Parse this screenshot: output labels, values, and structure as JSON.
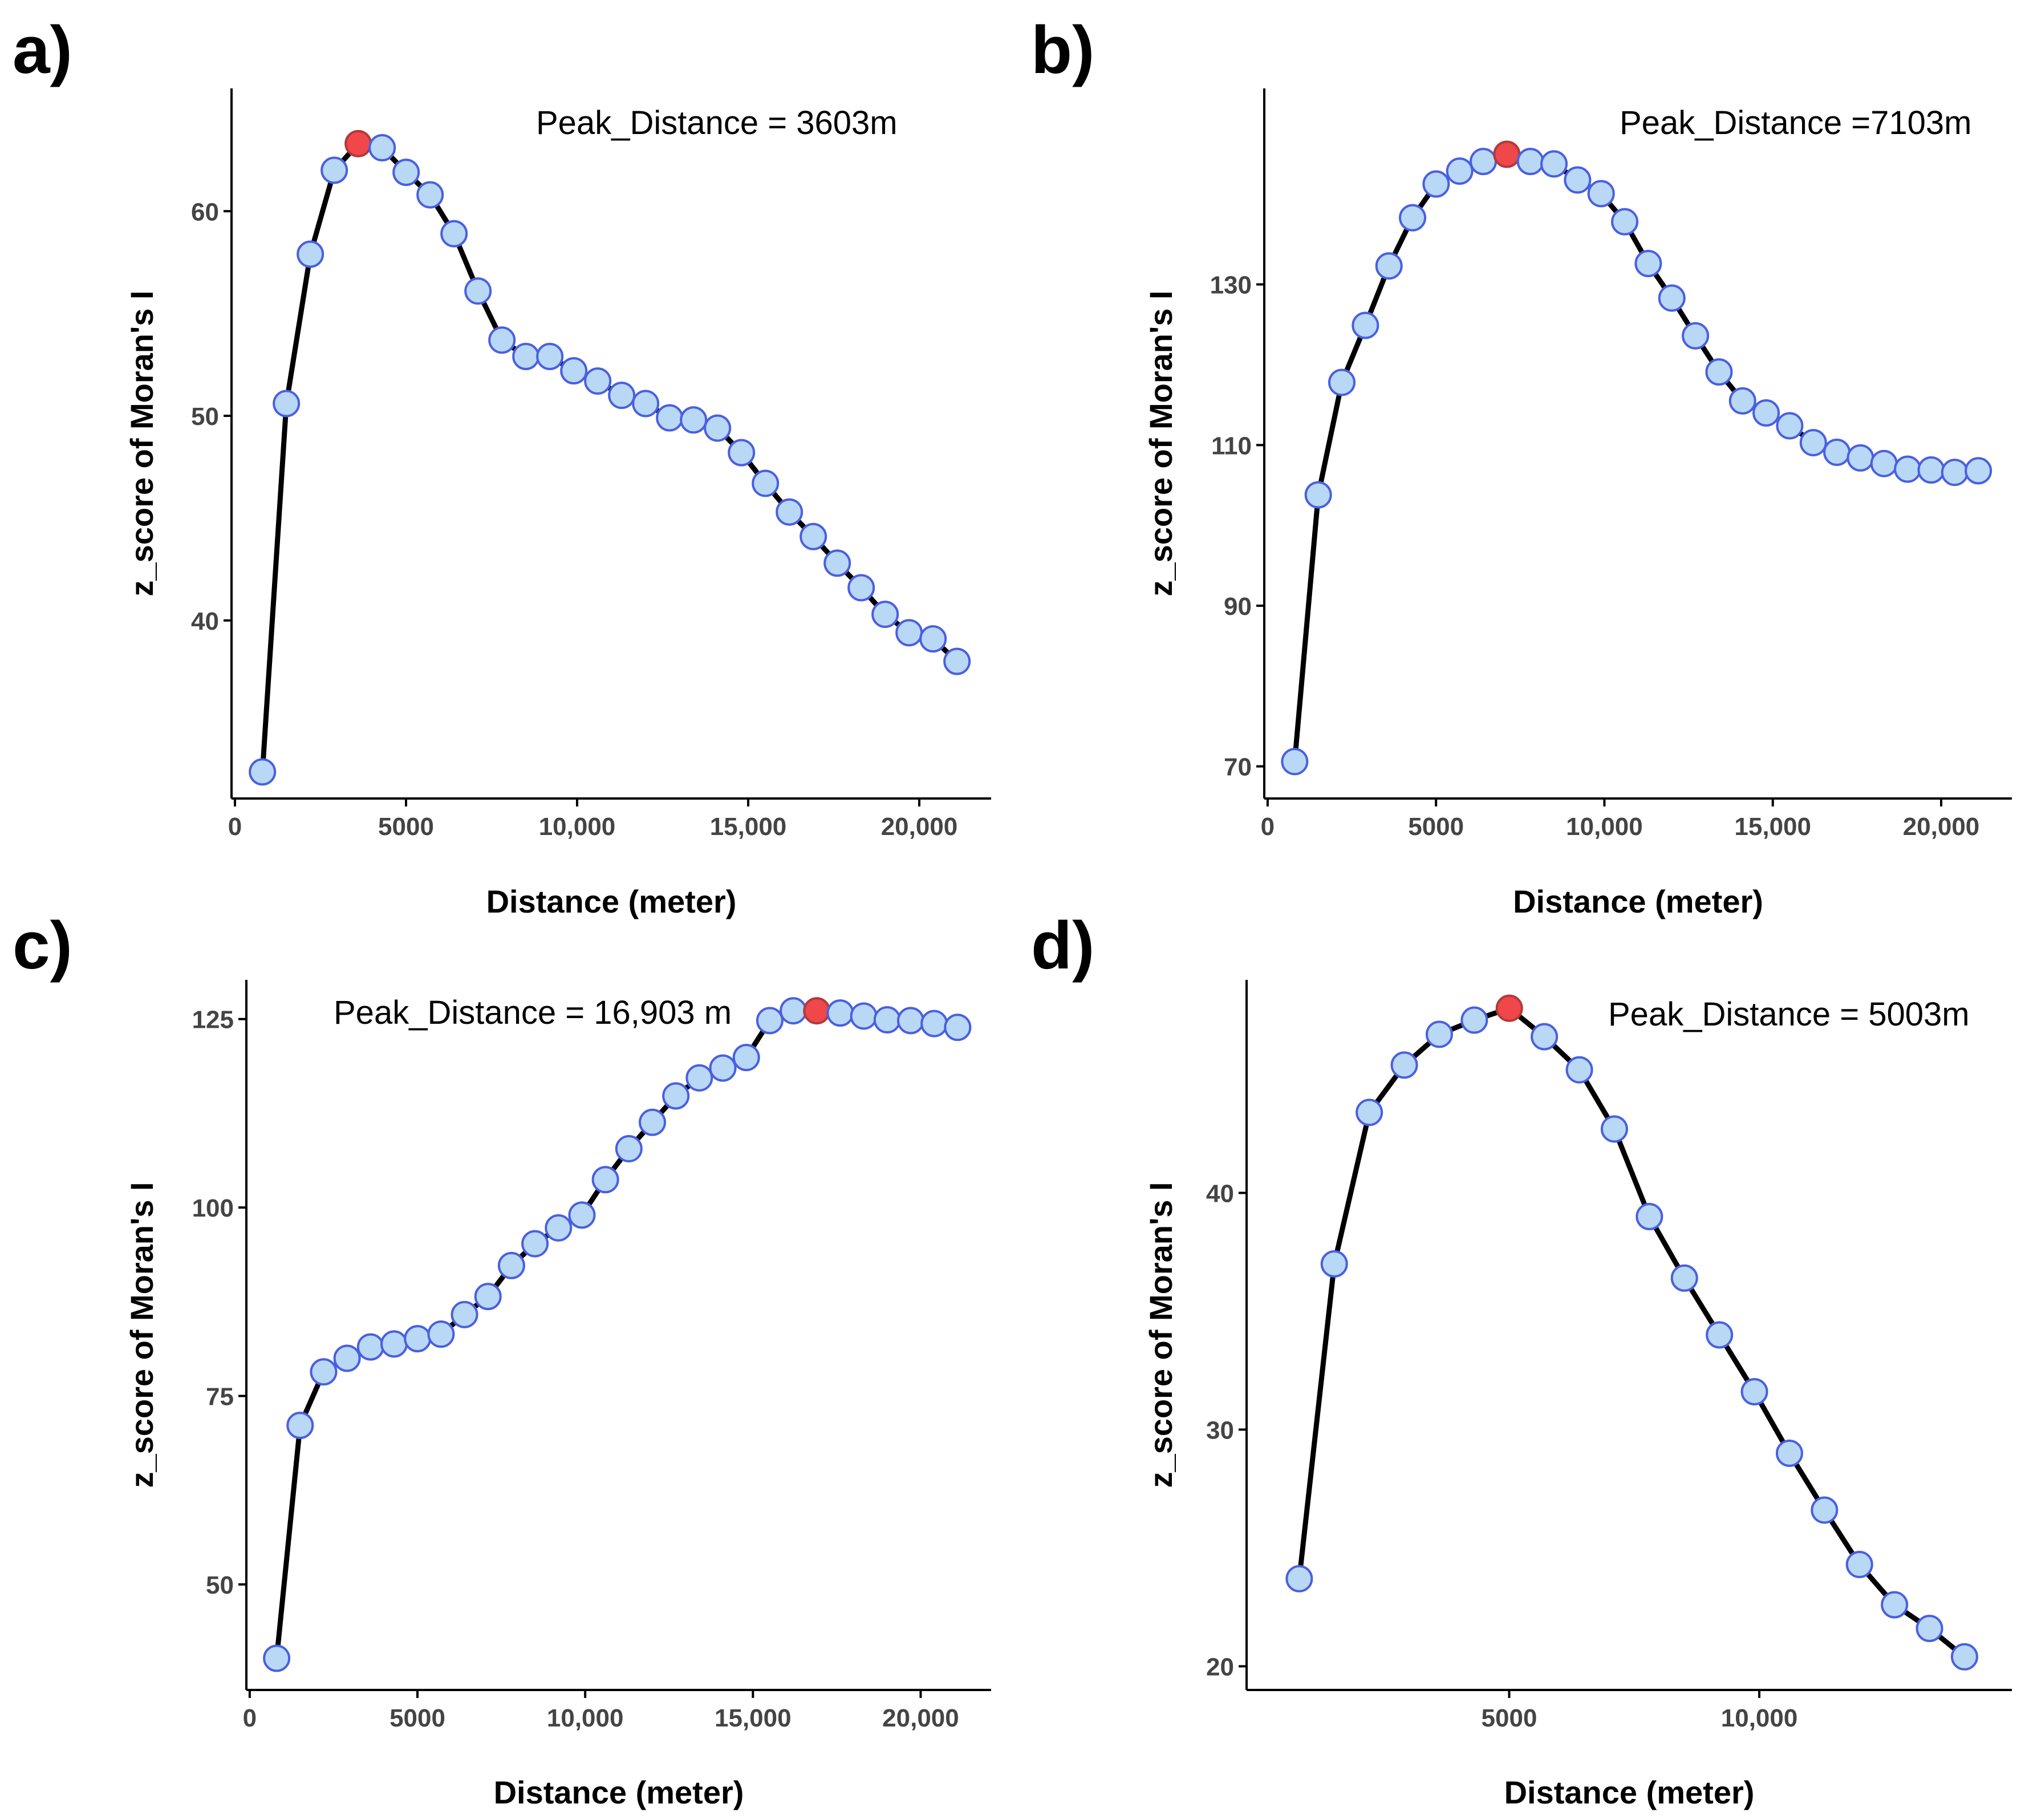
{
  "chart_data": [
    {
      "type": "line",
      "panel_label": "a)",
      "xlabel": "Distance (meter)",
      "ylabel": "z_score of Moran's I",
      "annotation": "Peak_Distance = 3603m",
      "peak_x": 3603,
      "xlim": [
        -100,
        22100
      ],
      "ylim": [
        31.3,
        66.0
      ],
      "xticks": [
        0,
        5000,
        10000,
        15000,
        20000
      ],
      "xtick_labels": [
        "0",
        "5000",
        "10,000",
        "15,000",
        "20,000"
      ],
      "yticks": [
        40,
        50,
        60
      ],
      "ytick_labels": [
        "40",
        "50",
        "60"
      ],
      "x": [
        803,
        1503,
        2203,
        2903,
        3603,
        4303,
        5003,
        5703,
        6403,
        7103,
        7803,
        8503,
        9203,
        9903,
        10603,
        11303,
        12003,
        12703,
        13403,
        14103,
        14803,
        15503,
        16203,
        16903,
        17603,
        18303,
        19003,
        19703,
        20403,
        21103
      ],
      "y": [
        32.6,
        50.6,
        57.9,
        62.0,
        63.3,
        63.1,
        61.9,
        60.8,
        58.9,
        56.1,
        53.7,
        52.9,
        52.9,
        52.2,
        51.7,
        51.0,
        50.6,
        49.9,
        49.8,
        49.4,
        48.2,
        46.7,
        45.3,
        44.1,
        42.8,
        41.6,
        40.3,
        39.4,
        39.1,
        38.0
      ]
    },
    {
      "type": "line",
      "panel_label": "b)",
      "xlabel": "Distance (meter)",
      "ylabel": "z_score of Moran's I",
      "annotation": "Peak_Distance =7103m",
      "peak_x": 7103,
      "xlim": [
        -100,
        22100
      ],
      "ylim": [
        66.0,
        154.4
      ],
      "xticks": [
        0,
        5000,
        10000,
        15000,
        20000
      ],
      "xtick_labels": [
        "0",
        "5000",
        "10,000",
        "15,000",
        "20,000"
      ],
      "yticks": [
        70,
        90,
        110,
        130
      ],
      "ytick_labels": [
        "70",
        "90",
        "110",
        "130"
      ],
      "x": [
        803,
        1503,
        2203,
        2903,
        3603,
        4303,
        5003,
        5703,
        6403,
        7103,
        7803,
        8503,
        9203,
        9903,
        10603,
        11303,
        12003,
        12703,
        13403,
        14103,
        14803,
        15503,
        16203,
        16903,
        17603,
        18303,
        19003,
        19703,
        20403,
        21103
      ],
      "y": [
        70.6,
        103.8,
        117.8,
        124.9,
        132.3,
        138.3,
        142.5,
        144.1,
        145.3,
        146.2,
        145.3,
        145.0,
        143.0,
        141.3,
        137.8,
        132.6,
        128.3,
        123.6,
        119.1,
        115.5,
        114.0,
        112.4,
        110.3,
        109.1,
        108.4,
        107.7,
        107.0,
        106.9,
        106.6,
        106.8
      ]
    },
    {
      "type": "line",
      "panel_label": "c)",
      "xlabel": "Distance (meter)",
      "ylabel": "z_score of Moran's I",
      "annotation": "Peak_Distance = 16,903 m",
      "peak_x": 16903,
      "xlim": [
        -100,
        22100
      ],
      "ylim": [
        36.0,
        130.2
      ],
      "xticks": [
        0,
        5000,
        10000,
        15000,
        20000
      ],
      "xtick_labels": [
        "0",
        "5000",
        "10,000",
        "15,000",
        "20,000"
      ],
      "yticks": [
        50,
        75,
        100,
        125
      ],
      "ytick_labels": [
        "50",
        "75",
        "100",
        "125"
      ],
      "x": [
        803,
        1503,
        2203,
        2903,
        3603,
        4303,
        5003,
        5703,
        6403,
        7103,
        7803,
        8503,
        9203,
        9903,
        10603,
        11303,
        12003,
        12703,
        13403,
        14103,
        14803,
        15503,
        16203,
        16903,
        17603,
        18303,
        19003,
        19703,
        20403,
        21103
      ],
      "y": [
        40.2,
        71.1,
        78.2,
        80.0,
        81.5,
        81.9,
        82.6,
        83.2,
        85.8,
        88.2,
        92.3,
        95.2,
        97.3,
        99.0,
        103.7,
        107.8,
        111.3,
        114.8,
        117.2,
        118.5,
        119.9,
        124.8,
        126.1,
        126.1,
        125.8,
        125.4,
        124.9,
        124.8,
        124.4,
        123.9
      ]
    },
    {
      "type": "line",
      "panel_label": "d)",
      "xlabel": "Distance (meter)",
      "ylabel": "z_score of Moran's I",
      "annotation": "Peak_Distance = 5003m",
      "peak_x": 5003,
      "xlim": [
        -250,
        15050
      ],
      "ylim": [
        19.0,
        49.0
      ],
      "xticks": [
        5000,
        10000
      ],
      "xtick_labels": [
        "5000",
        "10,000"
      ],
      "yticks": [
        20,
        30,
        40
      ],
      "ytick_labels": [
        "20",
        "30",
        "40"
      ],
      "x": [
        803,
        1503,
        2203,
        2903,
        3603,
        4303,
        5003,
        5703,
        6403,
        7103,
        7803,
        8503,
        9203,
        9903,
        10603,
        11303,
        12003,
        12703,
        13403,
        14103
      ],
      "y": [
        23.7,
        37.0,
        43.4,
        45.4,
        46.7,
        47.3,
        47.8,
        46.6,
        45.2,
        42.7,
        39.0,
        36.4,
        34.0,
        31.6,
        29.0,
        26.6,
        24.3,
        22.6,
        21.6,
        20.4
      ]
    }
  ],
  "colors": {
    "line": "#000000",
    "point_fill": "#b9d8f5",
    "point_stroke": "#4a5fe0",
    "peak_fill": "#f0474a",
    "peak_stroke": "#b03a3a"
  }
}
